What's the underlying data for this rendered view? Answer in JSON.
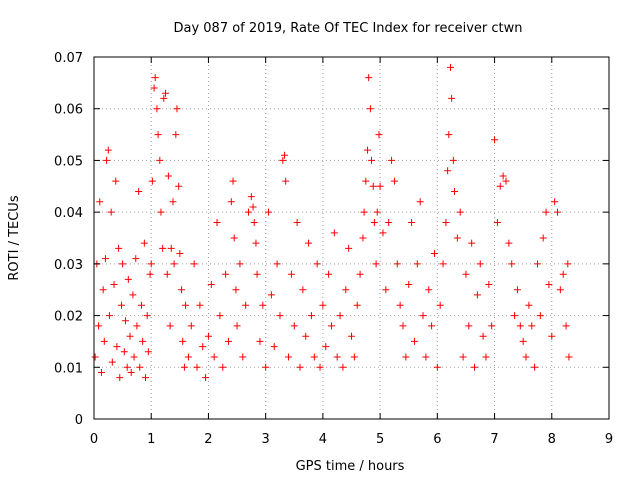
{
  "chart_data": {
    "type": "scatter",
    "title": "Day 087 of 2019, Rate Of TEC Index for receiver ctwn",
    "xlabel": "GPS time / hours",
    "ylabel": "ROTI / TECUs",
    "xlim": [
      0,
      9
    ],
    "ylim": [
      0,
      0.07
    ],
    "x_ticks": [
      0,
      1,
      2,
      3,
      4,
      5,
      6,
      7,
      8,
      9
    ],
    "y_ticks": [
      0,
      0.01,
      0.02,
      0.03,
      0.04,
      0.05,
      0.06,
      0.07
    ],
    "x_tick_labels": [
      "0",
      "1",
      "2",
      "3",
      "4",
      "5",
      "6",
      "7",
      "8",
      "9"
    ],
    "y_tick_labels": [
      "0",
      "0.01",
      "0.02",
      "0.03",
      "0.04",
      "0.05",
      "0.06",
      "0.07"
    ],
    "grid": true,
    "marker": "+",
    "color": "#ff0000",
    "series": [
      {
        "name": "ROTI",
        "description_points_are_approximate": true,
        "x": [
          0.02,
          0.05,
          0.08,
          0.1,
          0.13,
          0.16,
          0.18,
          0.2,
          0.22,
          0.25,
          0.27,
          0.3,
          0.32,
          0.35,
          0.38,
          0.4,
          0.43,
          0.45,
          0.48,
          0.5,
          0.53,
          0.55,
          0.58,
          0.6,
          0.63,
          0.65,
          0.68,
          0.7,
          0.73,
          0.75,
          0.78,
          0.8,
          0.83,
          0.85,
          0.88,
          0.9,
          0.93,
          0.95,
          0.98,
          1.0,
          1.02,
          1.05,
          1.07,
          1.1,
          1.12,
          1.15,
          1.17,
          1.2,
          1.22,
          1.25,
          1.28,
          1.3,
          1.33,
          1.35,
          1.38,
          1.4,
          1.43,
          1.45,
          1.48,
          1.5,
          1.53,
          1.55,
          1.58,
          1.6,
          1.65,
          1.7,
          1.75,
          1.8,
          1.85,
          1.9,
          1.95,
          2.0,
          2.05,
          2.1,
          2.15,
          2.2,
          2.25,
          2.3,
          2.35,
          2.4,
          2.43,
          2.45,
          2.48,
          2.5,
          2.55,
          2.6,
          2.65,
          2.7,
          2.75,
          2.78,
          2.8,
          2.83,
          2.85,
          2.9,
          2.95,
          3.0,
          3.05,
          3.1,
          3.15,
          3.2,
          3.25,
          3.3,
          3.33,
          3.35,
          3.4,
          3.45,
          3.5,
          3.55,
          3.6,
          3.65,
          3.7,
          3.75,
          3.8,
          3.85,
          3.9,
          3.95,
          4.0,
          4.05,
          4.1,
          4.15,
          4.2,
          4.25,
          4.3,
          4.35,
          4.4,
          4.45,
          4.5,
          4.55,
          4.6,
          4.65,
          4.7,
          4.72,
          4.75,
          4.78,
          4.8,
          4.83,
          4.85,
          4.88,
          4.9,
          4.93,
          4.95,
          4.98,
          5.0,
          5.05,
          5.1,
          5.15,
          5.2,
          5.25,
          5.3,
          5.35,
          5.4,
          5.45,
          5.5,
          5.55,
          5.6,
          5.65,
          5.7,
          5.75,
          5.8,
          5.85,
          5.9,
          5.95,
          6.0,
          6.05,
          6.1,
          6.15,
          6.18,
          6.2,
          6.23,
          6.25,
          6.28,
          6.3,
          6.35,
          6.4,
          6.45,
          6.5,
          6.55,
          6.6,
          6.65,
          6.7,
          6.75,
          6.8,
          6.85,
          6.9,
          6.95,
          7.0,
          7.05,
          7.1,
          7.15,
          7.2,
          7.25,
          7.3,
          7.35,
          7.4,
          7.45,
          7.5,
          7.55,
          7.6,
          7.65,
          7.7,
          7.75,
          7.8,
          7.85,
          7.9,
          7.95,
          8.0,
          8.05,
          8.1,
          8.15,
          8.2,
          8.25,
          8.28,
          8.3
        ],
        "y": [
          0.012,
          0.03,
          0.018,
          0.042,
          0.009,
          0.025,
          0.015,
          0.031,
          0.05,
          0.052,
          0.02,
          0.04,
          0.011,
          0.026,
          0.046,
          0.014,
          0.033,
          0.008,
          0.022,
          0.03,
          0.013,
          0.019,
          0.01,
          0.027,
          0.016,
          0.009,
          0.024,
          0.012,
          0.031,
          0.018,
          0.044,
          0.01,
          0.022,
          0.015,
          0.034,
          0.008,
          0.02,
          0.013,
          0.028,
          0.03,
          0.046,
          0.064,
          0.066,
          0.06,
          0.055,
          0.05,
          0.04,
          0.033,
          0.062,
          0.063,
          0.028,
          0.047,
          0.018,
          0.033,
          0.042,
          0.03,
          0.055,
          0.06,
          0.045,
          0.032,
          0.025,
          0.015,
          0.01,
          0.022,
          0.012,
          0.018,
          0.03,
          0.01,
          0.022,
          0.014,
          0.008,
          0.016,
          0.026,
          0.012,
          0.038,
          0.02,
          0.01,
          0.028,
          0.015,
          0.042,
          0.046,
          0.035,
          0.025,
          0.018,
          0.03,
          0.012,
          0.022,
          0.04,
          0.043,
          0.041,
          0.038,
          0.034,
          0.028,
          0.015,
          0.022,
          0.01,
          0.04,
          0.024,
          0.014,
          0.03,
          0.02,
          0.05,
          0.051,
          0.046,
          0.012,
          0.028,
          0.018,
          0.038,
          0.01,
          0.025,
          0.016,
          0.034,
          0.02,
          0.012,
          0.03,
          0.01,
          0.022,
          0.014,
          0.028,
          0.018,
          0.036,
          0.012,
          0.02,
          0.01,
          0.025,
          0.033,
          0.016,
          0.012,
          0.022,
          0.028,
          0.035,
          0.04,
          0.046,
          0.052,
          0.066,
          0.06,
          0.05,
          0.045,
          0.038,
          0.03,
          0.04,
          0.055,
          0.045,
          0.036,
          0.025,
          0.038,
          0.05,
          0.046,
          0.03,
          0.022,
          0.018,
          0.012,
          0.026,
          0.038,
          0.015,
          0.03,
          0.042,
          0.02,
          0.012,
          0.025,
          0.018,
          0.032,
          0.01,
          0.022,
          0.03,
          0.038,
          0.048,
          0.055,
          0.068,
          0.062,
          0.05,
          0.044,
          0.035,
          0.04,
          0.012,
          0.028,
          0.018,
          0.034,
          0.01,
          0.024,
          0.03,
          0.016,
          0.012,
          0.026,
          0.018,
          0.054,
          0.038,
          0.045,
          0.047,
          0.046,
          0.034,
          0.03,
          0.02,
          0.025,
          0.018,
          0.015,
          0.012,
          0.022,
          0.018,
          0.01,
          0.03,
          0.02,
          0.035,
          0.04,
          0.026,
          0.016,
          0.042,
          0.04,
          0.025,
          0.028,
          0.018,
          0.03,
          0.012
        ]
      }
    ]
  }
}
